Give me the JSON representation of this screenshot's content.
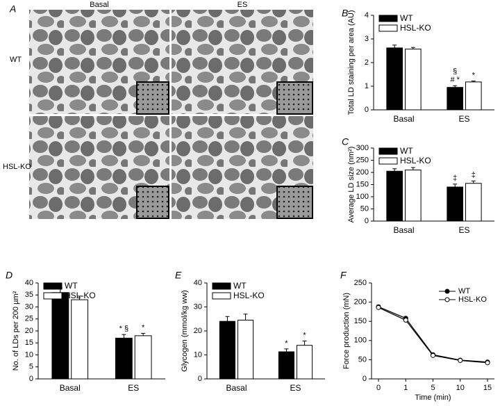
{
  "panel_a": {
    "label": "A",
    "columns": [
      "Basal",
      "ES"
    ],
    "rows": [
      "WT",
      "HSL-KO"
    ]
  },
  "chart_data": [
    {
      "type": "bar",
      "panel": "B",
      "ylabel": "Total LD staining per area (AU)",
      "categories": [
        "Basal",
        "ES"
      ],
      "ylim": [
        0,
        4
      ],
      "yticks": [
        0,
        1,
        2,
        3,
        4
      ],
      "legend": "upper left",
      "series": [
        {
          "name": "WT",
          "color": "#000000",
          "values": [
            2.62,
            0.95
          ],
          "errors": [
            0.12,
            0.07
          ],
          "annotations": [
            [],
            [
              "# *",
              "§"
            ]
          ]
        },
        {
          "name": "HSL-KO",
          "color": "#ffffff",
          "values": [
            2.57,
            1.18
          ],
          "errors": [
            0.07,
            0.04
          ],
          "annotations": [
            [],
            [
              "*"
            ]
          ]
        }
      ]
    },
    {
      "type": "bar",
      "panel": "C",
      "ylabel": "Average LD size (nm²)",
      "categories": [
        "Basal",
        "ES"
      ],
      "ylim": [
        0,
        300
      ],
      "yticks": [
        0,
        50,
        100,
        150,
        200,
        250,
        300
      ],
      "legend": "upper left",
      "series": [
        {
          "name": "WT",
          "color": "#000000",
          "values": [
            205,
            140
          ],
          "errors": [
            10,
            12
          ],
          "annotations": [
            [],
            [
              "‡"
            ]
          ]
        },
        {
          "name": "HSL-KO",
          "color": "#ffffff",
          "values": [
            210,
            155
          ],
          "errors": [
            10,
            10
          ],
          "annotations": [
            [],
            [
              "‡"
            ]
          ]
        }
      ]
    },
    {
      "type": "bar",
      "panel": "D",
      "ylabel": "No. of LDs per 200 µm²",
      "categories": [
        "Basal",
        "ES"
      ],
      "ylim": [
        0,
        40
      ],
      "yticks": [
        0,
        5,
        10,
        15,
        20,
        25,
        30,
        35,
        40
      ],
      "legend": "upper left",
      "series": [
        {
          "name": "WT",
          "color": "#000000",
          "values": [
            36,
            17
          ],
          "errors": [
            2,
            1.5
          ],
          "annotations": [
            [],
            [
              "* §"
            ]
          ]
        },
        {
          "name": "HSL-KO",
          "color": "#ffffff",
          "values": [
            33,
            18
          ],
          "errors": [
            1.5,
            1
          ],
          "annotations": [
            [],
            [
              "*"
            ]
          ]
        }
      ]
    },
    {
      "type": "bar",
      "panel": "E",
      "ylabel": "Glycogen (mmol/kg ww)",
      "categories": [
        "Basal",
        "ES"
      ],
      "ylim": [
        0,
        40
      ],
      "yticks": [
        0,
        10,
        20,
        30,
        40
      ],
      "legend": "upper left",
      "series": [
        {
          "name": "WT",
          "color": "#000000",
          "values": [
            24,
            11.3
          ],
          "errors": [
            2,
            1.2
          ],
          "annotations": [
            [],
            [
              "*"
            ]
          ]
        },
        {
          "name": "HSL-KO",
          "color": "#ffffff",
          "values": [
            24.5,
            14
          ],
          "errors": [
            2.5,
            1.8
          ],
          "annotations": [
            [],
            [
              "*"
            ]
          ]
        }
      ]
    },
    {
      "type": "line",
      "panel": "F",
      "xlabel": "Time (min)",
      "ylabel": "Force production (mN)",
      "categories": [
        "0",
        "1",
        "5",
        "10",
        "15"
      ],
      "ylim": [
        0,
        250
      ],
      "yticks": [
        0,
        50,
        100,
        150,
        200,
        250
      ],
      "legend": "upper right",
      "series": [
        {
          "name": "WT",
          "color": "#000000",
          "values": [
            188,
            158,
            63,
            49,
            44
          ]
        },
        {
          "name": "HSL-KO",
          "color": "#ffffff",
          "values": [
            186,
            153,
            61,
            48,
            42
          ]
        }
      ]
    }
  ]
}
